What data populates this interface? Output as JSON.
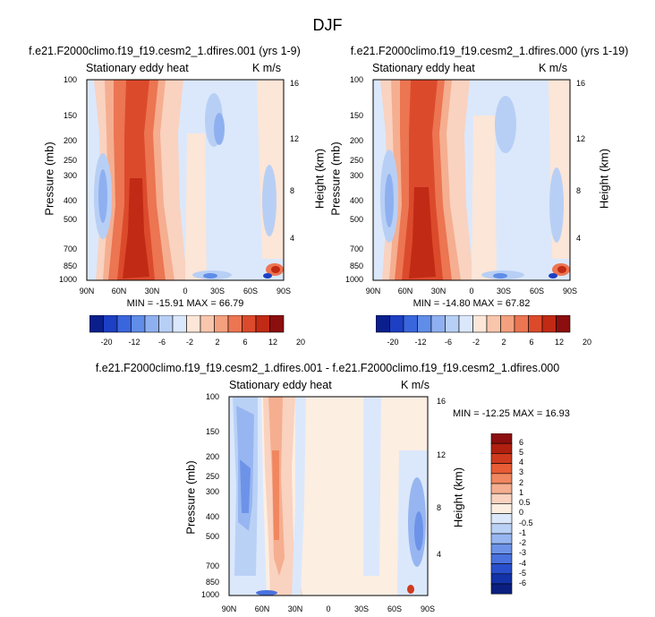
{
  "figure_title": "DJF",
  "chart_data": [
    {
      "type": "heatmap",
      "title": "f.e21.F2000climo.f19_f19.cesm2_1.dfires.001 (yrs 1-9)",
      "left_label": "Stationary eddy heat",
      "units": "K m/s",
      "xlabel": "",
      "ylabel": "Pressure (mb)",
      "y2label": "Height (km)",
      "x_ticks": [
        "90N",
        "60N",
        "30N",
        "0",
        "30S",
        "60S",
        "90S"
      ],
      "x_range": [
        90,
        -90
      ],
      "y_ticks": [
        "100",
        "150",
        "200",
        "250",
        "300",
        "400",
        "500",
        "700",
        "850",
        "1000"
      ],
      "y_range_mb": [
        1000,
        100
      ],
      "y2_ticks": [
        "16",
        "12",
        "8",
        "4"
      ],
      "min_max_text": "MIN = -15.91  MAX =  66.79",
      "min": -15.91,
      "max": 66.79,
      "colorbar_labels": [
        "-20",
        "-12",
        "-6",
        "-2",
        "2",
        "6",
        "12",
        "20"
      ]
    },
    {
      "type": "heatmap",
      "title": "f.e21.F2000climo.f19_f19.cesm2_1.dfires.000 (yrs 1-19)",
      "left_label": "Stationary eddy heat",
      "units": "K m/s",
      "xlabel": "",
      "ylabel": "Pressure (mb)",
      "y2label": "Height (km)",
      "x_ticks": [
        "90N",
        "60N",
        "30N",
        "0",
        "30S",
        "60S",
        "90S"
      ],
      "x_range": [
        90,
        -90
      ],
      "y_ticks": [
        "100",
        "150",
        "200",
        "250",
        "300",
        "400",
        "500",
        "700",
        "850",
        "1000"
      ],
      "y_range_mb": [
        1000,
        100
      ],
      "y2_ticks": [
        "16",
        "12",
        "8",
        "4"
      ],
      "min_max_text": "MIN = -14.80  MAX =  67.82",
      "min": -14.8,
      "max": 67.82,
      "colorbar_labels": [
        "-20",
        "-12",
        "-6",
        "-2",
        "2",
        "6",
        "12",
        "20"
      ]
    },
    {
      "type": "heatmap",
      "title": "f.e21.F2000climo.f19_f19.cesm2_1.dfires.001 - f.e21.F2000climo.f19_f19.cesm2_1.dfires.000",
      "left_label": "Stationary eddy heat",
      "units": "K m/s",
      "xlabel": "",
      "ylabel": "Pressure (mb)",
      "y2label": "Height (km)",
      "x_ticks": [
        "90N",
        "60N",
        "30N",
        "0",
        "30S",
        "60S",
        "90S"
      ],
      "x_range": [
        90,
        -90
      ],
      "y_ticks": [
        "100",
        "150",
        "200",
        "250",
        "300",
        "400",
        "500",
        "700",
        "850",
        "1000"
      ],
      "y_range_mb": [
        1000,
        100
      ],
      "y2_ticks": [
        "16",
        "12",
        "8",
        "4"
      ],
      "min_max_text": "MIN = -12.25  MAX =  16.93",
      "min": -12.25,
      "max": 16.93,
      "colorbar_labels": [
        "6",
        "5",
        "4",
        "3",
        "2",
        "1",
        "0.5",
        "0",
        "-0.5",
        "-1",
        "-2",
        "-3",
        "-4",
        "-5",
        "-6"
      ]
    }
  ],
  "colors": {
    "horizontal_bar": [
      "#0a1f8c",
      "#1c3fc4",
      "#3a66dd",
      "#5f8de8",
      "#8fb0f0",
      "#b8cff5",
      "#dbe8fb",
      "#fbe6d8",
      "#f8c6ac",
      "#f4a07e",
      "#ec7552",
      "#dc4a2c",
      "#c12a15",
      "#8c0e0e"
    ],
    "vertical_bar": [
      "#8c0e0e",
      "#b01f10",
      "#cf3a1e",
      "#e85c36",
      "#f08760",
      "#f5ae90",
      "#f9d2c0",
      "#fdeee2",
      "#dbe8fb",
      "#bad1f6",
      "#97b6f1",
      "#6d93e8",
      "#4a72de",
      "#2a4fcc",
      "#1332a8",
      "#0a1f80"
    ]
  }
}
